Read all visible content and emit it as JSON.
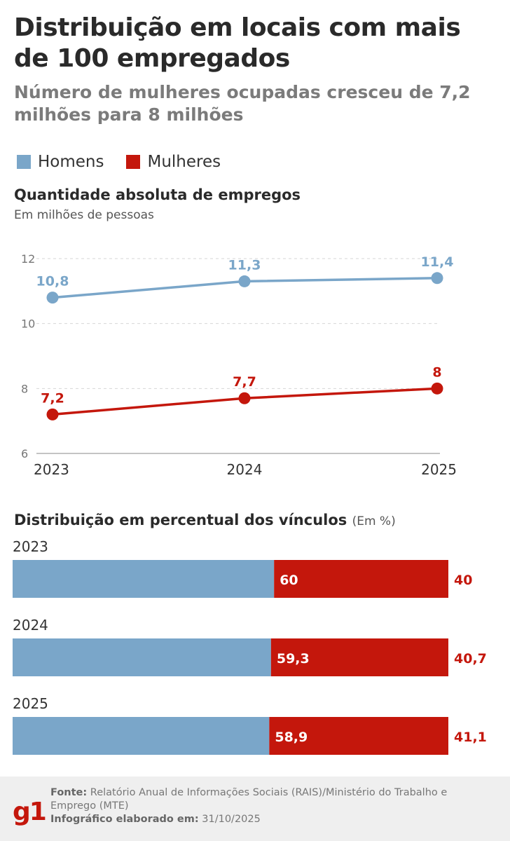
{
  "header": {
    "title": "Distribuição em locais com mais de 100 empregados",
    "subtitle": "Número de mulheres ocupadas cresceu de 7,2 milhões para 8 milhões"
  },
  "legend": [
    {
      "label": "Homens",
      "color": "#7aa6c9"
    },
    {
      "label": "Mulheres",
      "color": "#c4170c"
    }
  ],
  "colors": {
    "men": "#7aa6c9",
    "women": "#c4170c",
    "grid": "#d6d6d6"
  },
  "line_section": {
    "title": "Quantidade absoluta de empregos",
    "unit": "Em milhões de pessoas"
  },
  "bar_section": {
    "title": "Distribuição em percentual dos vínculos",
    "unit": "(Em %)"
  },
  "chart_data": [
    {
      "type": "line",
      "title": "Quantidade absoluta de empregos",
      "ylabel": "Em milhões de pessoas",
      "categories": [
        "2023",
        "2024",
        "2025"
      ],
      "yticks": [
        6,
        8,
        10,
        12
      ],
      "ylim": [
        6,
        12
      ],
      "grid": true,
      "series": [
        {
          "name": "Homens",
          "values": [
            10.8,
            11.3,
            11.4
          ],
          "labels": [
            "10,8",
            "11,3",
            "11,4"
          ]
        },
        {
          "name": "Mulheres",
          "values": [
            7.2,
            7.7,
            8
          ],
          "labels": [
            "7,2",
            "7,7",
            "8"
          ]
        }
      ]
    },
    {
      "type": "bar",
      "orientation": "horizontal-stacked",
      "title": "Distribuição em percentual dos vínculos",
      "unit": "(Em %)",
      "categories": [
        "2023",
        "2024",
        "2025"
      ],
      "series": [
        {
          "name": "Homens",
          "values": [
            60,
            59.3,
            58.9
          ],
          "labels": [
            "60",
            "59,3",
            "58,9"
          ]
        },
        {
          "name": "Mulheres",
          "values": [
            40,
            40.7,
            41.1
          ],
          "labels": [
            "40",
            "40,7",
            "41,1"
          ]
        }
      ]
    }
  ],
  "footer": {
    "logo": "g1",
    "source_label": "Fonte:",
    "source_text": "Relatório Anual de Informações Sociais (RAIS)/Ministério do Trabalho e Emprego (MTE)",
    "date_label": "Infográfico elaborado em:",
    "date_text": "31/10/2025"
  }
}
